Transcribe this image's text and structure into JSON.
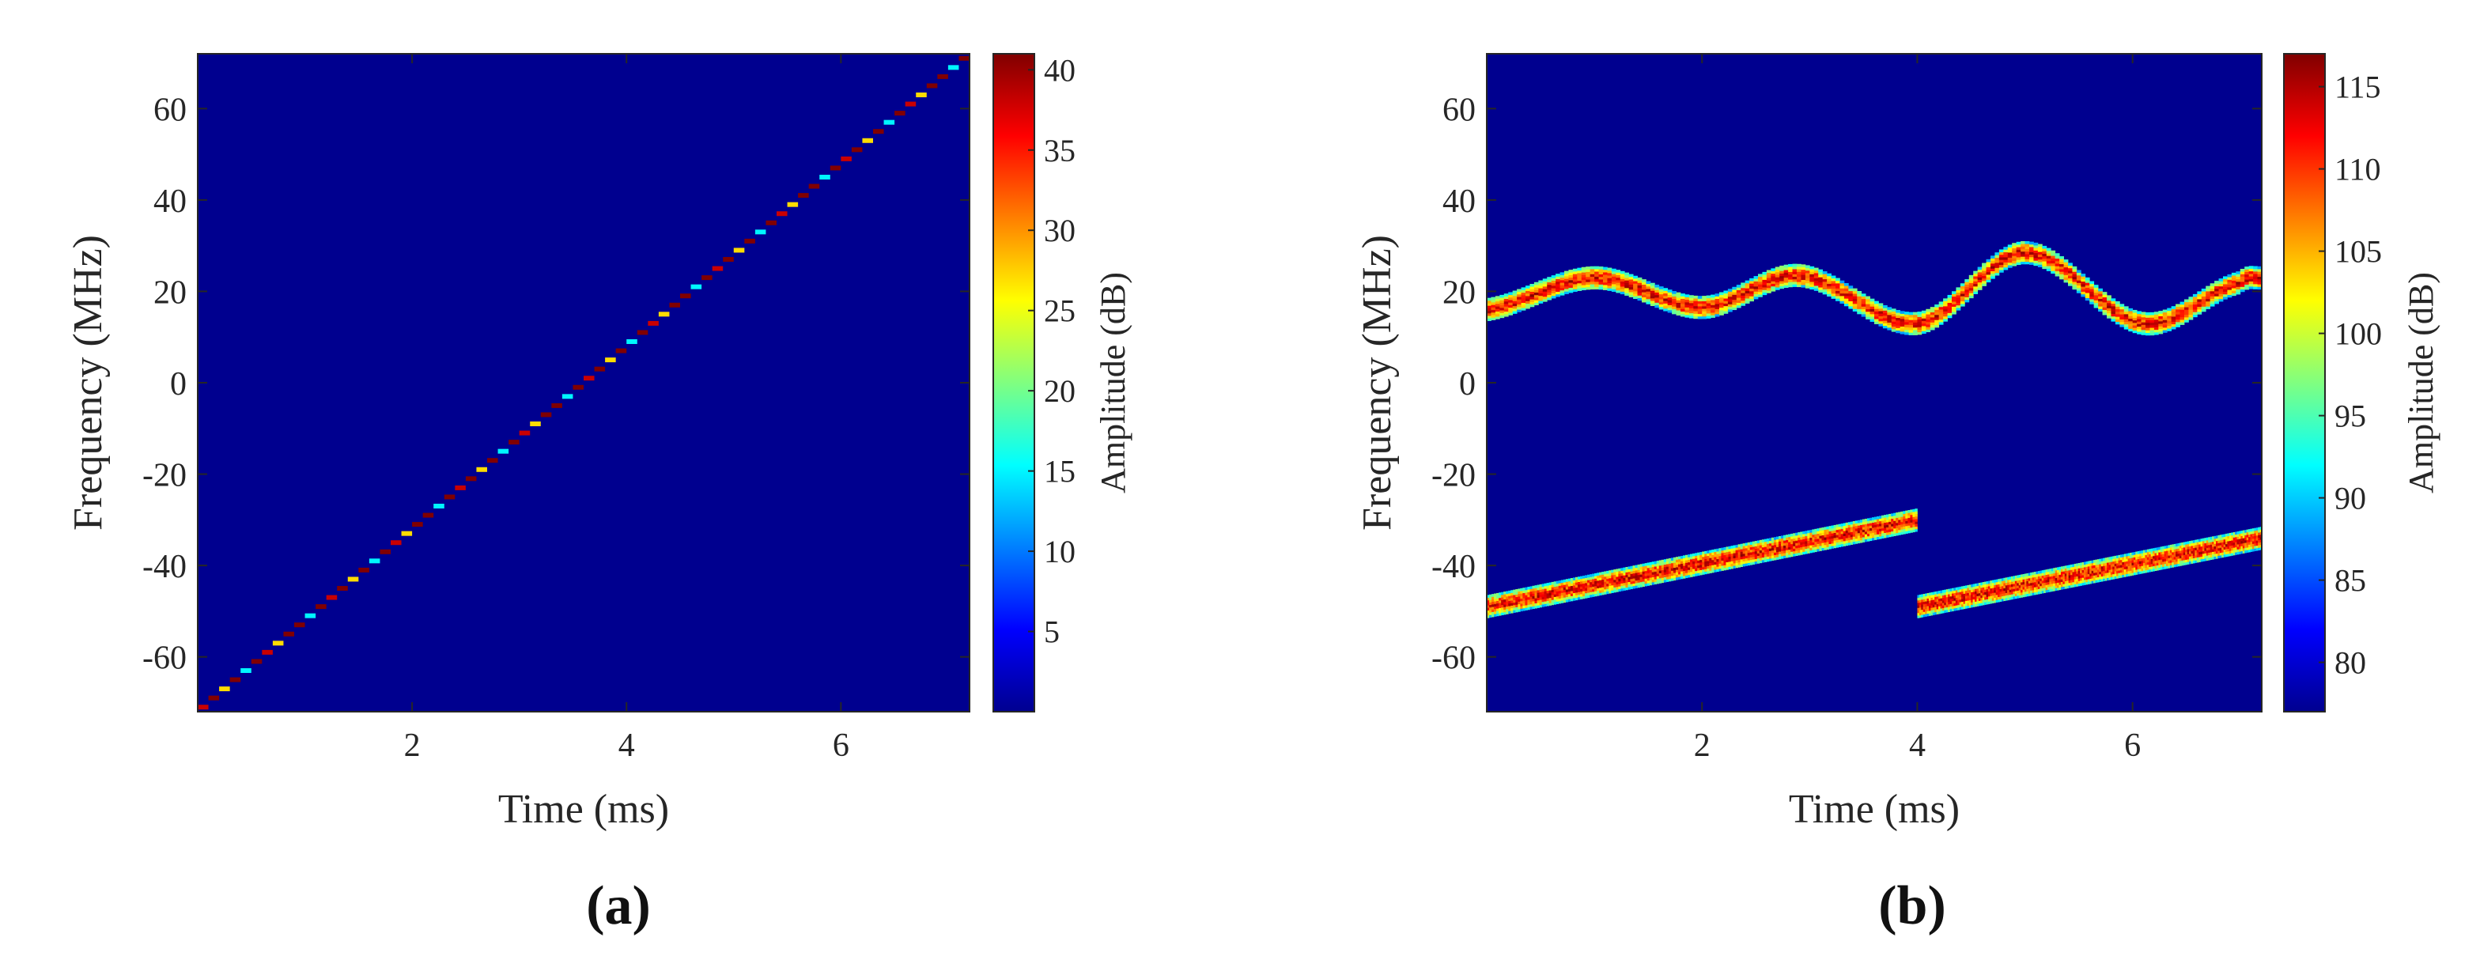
{
  "chart_data": [
    {
      "type": "heatmap",
      "panel_label": "(a)",
      "xlabel": "Time (ms)",
      "ylabel": "Frequency (MHz)",
      "colorbar_label": "Amplitude (dB)",
      "xlim": [
        0,
        7.2
      ],
      "ylim": [
        -72,
        72
      ],
      "clim": [
        0,
        41
      ],
      "background_value": 1,
      "xticks": [
        "2",
        "4",
        "6"
      ],
      "yticks": [
        "-60",
        "-40",
        "-20",
        "0",
        "20",
        "40",
        "60"
      ],
      "cbticks": [
        "5",
        "10",
        "15",
        "20",
        "25",
        "30",
        "35",
        "40"
      ],
      "signals": [
        {
          "kind": "stepped_chirp",
          "t_start": 0,
          "t_end": 7.2,
          "f_start": -71,
          "f_end": 71,
          "num_steps": 72,
          "step_values": [
            38,
            41,
            27,
            41,
            15,
            41,
            38,
            27,
            41,
            41,
            15,
            41
          ]
        }
      ]
    },
    {
      "type": "heatmap",
      "panel_label": "(b)",
      "xlabel": "Time (ms)",
      "ylabel": "Frequency (MHz)",
      "colorbar_label": "Amplitude (dB)",
      "xlim": [
        0,
        7.2
      ],
      "ylim": [
        -72,
        72
      ],
      "clim": [
        77,
        117
      ],
      "background_value": 77,
      "xticks": [
        "2",
        "4",
        "6"
      ],
      "yticks": [
        "-60",
        "-40",
        "-20",
        "0",
        "20",
        "40",
        "60"
      ],
      "cbticks": [
        "80",
        "85",
        "90",
        "95",
        "100",
        "105",
        "110",
        "115"
      ],
      "signals": [
        {
          "kind": "sinusoidal_fm",
          "t_start": 0,
          "t_end": 7.2,
          "points": [
            [
              0,
              16
            ],
            [
              1,
              23
            ],
            [
              2,
              16.5
            ],
            [
              2.9,
              23.5
            ],
            [
              4,
              13
            ],
            [
              5,
              28.5
            ],
            [
              6.1,
              13
            ],
            [
              7,
              22
            ],
            [
              7.2,
              23
            ]
          ],
          "band_width_mhz": 5,
          "peak_value": 112
        },
        {
          "kind": "linear_fm",
          "t_start": 0,
          "t_end": 4,
          "f_start": -49,
          "f_end": -30,
          "band_width_mhz": 5,
          "peak_value": 112
        },
        {
          "kind": "linear_fm",
          "t_start": 4,
          "t_end": 7.2,
          "f_start": -49,
          "f_end": -34,
          "band_width_mhz": 5,
          "peak_value": 112
        }
      ]
    }
  ]
}
